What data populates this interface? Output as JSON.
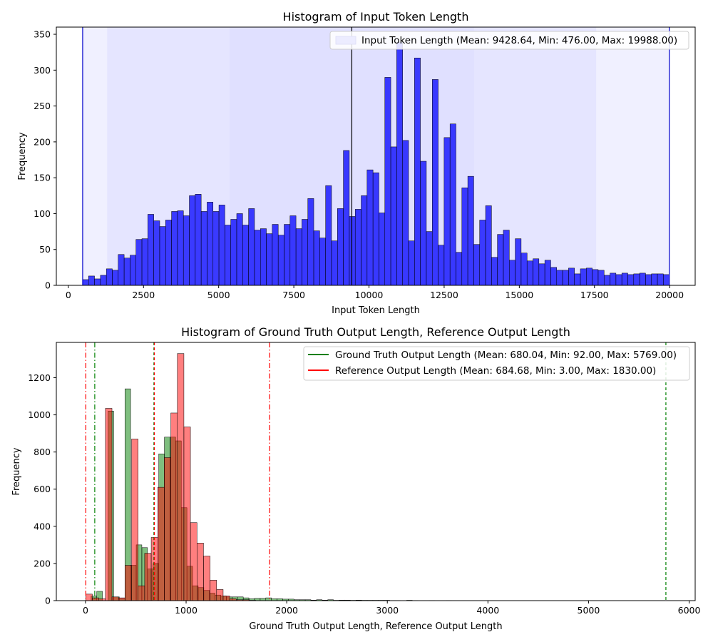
{
  "chart_data": [
    {
      "type": "bar",
      "title": "Histogram of Input Token Length",
      "xlabel": "Input Token Length",
      "ylabel": "Frequency",
      "xlim": [
        -400,
        20850
      ],
      "ylim": [
        0,
        360
      ],
      "xticks": [
        0,
        2500,
        5000,
        7500,
        10000,
        12500,
        15000,
        17500,
        20000
      ],
      "xtick_labels": [
        "0",
        "2500",
        "5000",
        "7500",
        "10000",
        "12500",
        "15000",
        "17500",
        "20000"
      ],
      "yticks": [
        0,
        50,
        100,
        150,
        200,
        250,
        300,
        350
      ],
      "ytick_labels": [
        "0",
        "50",
        "100",
        "150",
        "200",
        "250",
        "300",
        "350"
      ],
      "legend_position": "top-right",
      "legend": [
        {
          "label": "Input Token Length (Mean: 9428.64, Min: 476.00, Max: 19988.00)",
          "style": "patch",
          "color": "#ececff"
        }
      ],
      "series": [
        {
          "name": "Input Token Length",
          "color": "#0000ff",
          "bin_start": 476,
          "bin_end": 19988,
          "values": [
            8,
            13,
            9,
            14,
            23,
            21,
            43,
            38,
            42,
            64,
            65,
            99,
            90,
            82,
            91,
            103,
            104,
            97,
            125,
            127,
            103,
            116,
            103,
            112,
            84,
            92,
            100,
            84,
            107,
            77,
            79,
            72,
            85,
            70,
            85,
            97,
            79,
            92,
            121,
            76,
            66,
            139,
            62,
            107,
            188,
            96,
            106,
            125,
            161,
            157,
            101,
            290,
            193,
            339,
            202,
            62,
            317,
            173,
            75,
            287,
            56,
            206,
            225,
            46,
            136,
            152,
            57,
            91,
            111,
            39,
            71,
            77,
            35,
            65,
            45,
            34,
            37,
            30,
            35,
            25,
            21,
            21,
            24,
            16,
            23,
            24,
            22,
            21,
            14,
            17,
            15,
            17,
            15,
            16,
            17,
            15,
            16,
            16,
            15
          ],
          "mean": 9428.64,
          "min": 476.0,
          "max": 19988.0
        }
      ],
      "shaded_bands": [
        {
          "from": 476,
          "to": 1290,
          "level": 1
        },
        {
          "from": 1290,
          "to": 5360,
          "level": 2
        },
        {
          "from": 5360,
          "to": 9430,
          "level": 3
        },
        {
          "from": 9430,
          "to": 13500,
          "level": 3
        },
        {
          "from": 13500,
          "to": 17560,
          "level": 2
        },
        {
          "from": 17560,
          "to": 19988,
          "level": 1
        }
      ],
      "vlines": [
        {
          "x": 9428.64,
          "color": "#000000",
          "style": "solid"
        },
        {
          "x": 476,
          "color": "#0000cc",
          "style": "solid"
        },
        {
          "x": 19988,
          "color": "#0000cc",
          "style": "solid"
        }
      ]
    },
    {
      "type": "bar",
      "title": "Histogram of Ground Truth Output Length, Reference Output Length",
      "xlabel": "Ground Truth Output Length, Reference Output Length",
      "ylabel": "Frequency",
      "xlim": [
        -290,
        6060
      ],
      "ylim": [
        0,
        1390
      ],
      "xticks": [
        0,
        1000,
        2000,
        3000,
        4000,
        5000,
        6000
      ],
      "xtick_labels": [
        "0",
        "1000",
        "2000",
        "3000",
        "4000",
        "5000",
        "6000"
      ],
      "yticks": [
        0,
        200,
        400,
        600,
        800,
        1000,
        1200
      ],
      "ytick_labels": [
        "0",
        "200",
        "400",
        "600",
        "800",
        "1000",
        "1200"
      ],
      "legend_position": "top-right",
      "legend": [
        {
          "label": "Ground Truth Output Length (Mean: 680.04, Min: 92.00, Max: 5769.00)",
          "style": "line",
          "color": "#008000"
        },
        {
          "label": "Reference Output Length (Mean: 684.68, Min: 3.00, Max: 1830.00)",
          "style": "line",
          "color": "#ff0000"
        }
      ],
      "series": [
        {
          "name": "Ground Truth Output Length",
          "color": "#008000",
          "bin_start": 0,
          "bin_width": 56,
          "values": [
            0,
            25,
            50,
            0,
            1020,
            20,
            10,
            1140,
            190,
            300,
            285,
            170,
            200,
            790,
            880,
            880,
            860,
            500,
            185,
            80,
            70,
            55,
            40,
            30,
            25,
            20,
            20,
            20,
            15,
            10,
            12,
            12,
            15,
            10,
            10,
            8,
            8,
            5,
            5,
            5,
            3,
            5,
            3,
            5,
            2,
            3,
            3,
            2,
            3,
            2,
            2,
            2,
            2,
            2,
            1,
            1,
            0,
            2,
            1,
            0,
            0,
            1,
            0,
            0,
            1,
            0,
            0,
            0,
            0,
            0,
            0,
            0,
            0,
            0,
            0,
            0,
            0,
            0,
            0,
            0,
            0,
            0,
            0,
            0,
            0,
            0,
            0,
            0,
            0,
            0,
            0,
            0,
            0,
            0,
            0,
            0,
            0,
            0,
            0,
            0,
            0,
            0,
            0,
            0
          ],
          "mean": 680.04,
          "min": 92.0,
          "max": 5769.0
        },
        {
          "name": "Reference Output Length",
          "color": "#ff0000",
          "bin_start": 3,
          "bin_width": 65,
          "values": [
            35,
            15,
            10,
            1035,
            20,
            15,
            190,
            870,
            80,
            255,
            340,
            610,
            770,
            1010,
            1330,
            935,
            420,
            310,
            240,
            110,
            60,
            25,
            10,
            5,
            5,
            2,
            1,
            1
          ],
          "mean": 684.68,
          "min": 3.0,
          "max": 1830.0
        }
      ],
      "vlines": [
        {
          "x": 680.04,
          "color": "#008000",
          "style": "dashed"
        },
        {
          "x": 92,
          "color": "#008000",
          "style": "dashdot"
        },
        {
          "x": 5769,
          "color": "#008000",
          "style": "dashed"
        },
        {
          "x": 684.68,
          "color": "#ff0000",
          "style": "dashed"
        },
        {
          "x": 3,
          "color": "#ff0000",
          "style": "dashdot"
        },
        {
          "x": 1830,
          "color": "#ff0000",
          "style": "dashdot"
        }
      ]
    }
  ]
}
